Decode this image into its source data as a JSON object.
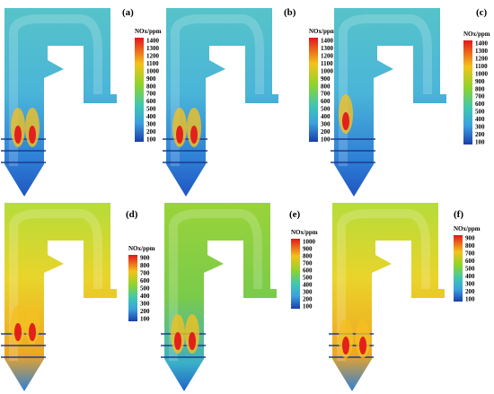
{
  "panels": [
    {
      "label": "(a)",
      "colorbar_title": "NOx/ppm",
      "ticks": [
        1400,
        1300,
        1200,
        1100,
        1000,
        900,
        800,
        700,
        600,
        500,
        400,
        300,
        200,
        100
      ]
    },
    {
      "label": "(b)",
      "colorbar_title": "NOx/ppm",
      "ticks": [
        1400,
        1300,
        1200,
        1100,
        1000,
        900,
        800,
        700,
        600,
        500,
        400,
        300,
        200,
        100
      ]
    },
    {
      "label": "(c)",
      "colorbar_title": "NOx/ppm",
      "ticks": [
        1400,
        1300,
        1200,
        1100,
        1000,
        900,
        800,
        700,
        600,
        500,
        400,
        300,
        200,
        100
      ]
    },
    {
      "label": "(d)",
      "colorbar_title": "NOx/ppm",
      "ticks": [
        900,
        800,
        700,
        600,
        500,
        400,
        300,
        200,
        100
      ]
    },
    {
      "label": "(e)",
      "colorbar_title": "NOx/ppm",
      "ticks": [
        1000,
        900,
        800,
        700,
        600,
        500,
        400,
        300,
        200,
        100
      ]
    },
    {
      "label": "(f)",
      "colorbar_title": "NOx/ppm",
      "ticks": [
        900,
        800,
        700,
        600,
        500,
        400,
        300,
        200,
        100
      ]
    }
  ]
}
